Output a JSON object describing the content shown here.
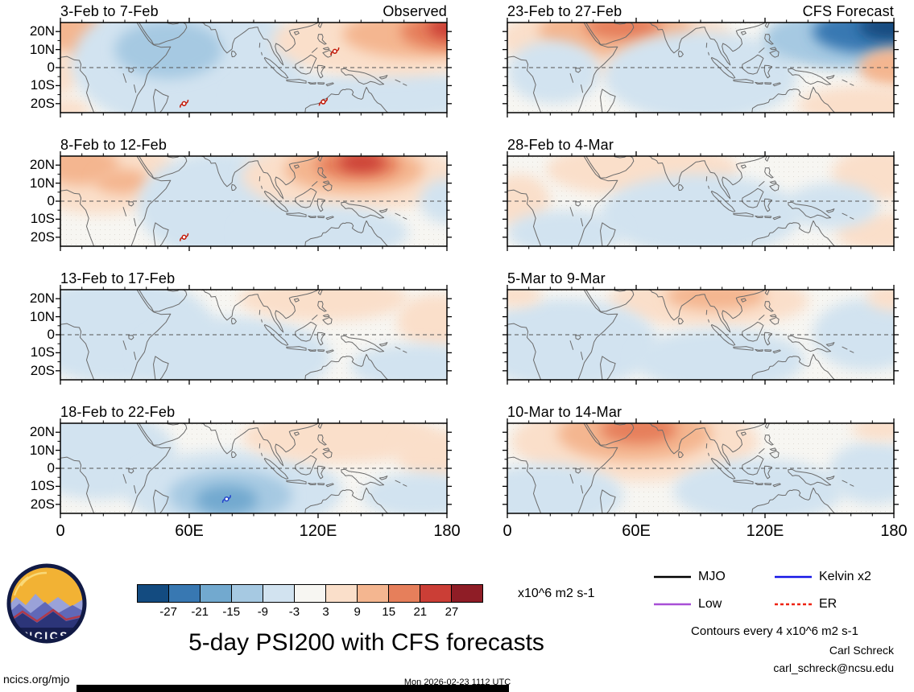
{
  "figure": {
    "main_title": "5-day PSI200 with CFS forecasts",
    "units_label": "x10^6 m2 s-1",
    "contour_note": "Contours every 4 x10^6 m2 s-1",
    "credit_name": "Carl Schreck",
    "credit_email": "carl_schreck@ncsu.edu",
    "footer_left": "ncics.org/mjo",
    "footer_center": "Mon 2026-02-23 1112 UTC",
    "logo_text": "NCICS"
  },
  "chart_data": {
    "type": "heatmap",
    "title": "5-day PSI200 with CFS forecasts",
    "description": "Eight map panels of 200-hPa streamfunction anomalies (PSI200), left column observed pentads, right column CFS forecast pentads, lon 0-180, lat 25S-25N",
    "x_ticks": [
      "0",
      "60E",
      "120E",
      "180"
    ],
    "y_ticks": [
      "20N",
      "10N",
      "0",
      "10S",
      "20S"
    ],
    "lon_range": [
      0,
      180
    ],
    "lat_range": [
      -25,
      25
    ],
    "map_bg": "#f7f6f2",
    "colorbar": {
      "levels": [
        -27,
        -21,
        -15,
        -9,
        -3,
        3,
        9,
        15,
        21,
        27
      ],
      "colors": [
        "#134b80",
        "#3878b2",
        "#72a9cf",
        "#a6c9e2",
        "#d2e3f0",
        "#f7f6f2",
        "#fadfca",
        "#f4b690",
        "#e67f5b",
        "#cb3e36",
        "#8f1d26"
      ],
      "units": "x10^6 m2 s-1"
    },
    "legend": [
      {
        "label": "MJO",
        "color": "#000000",
        "dash": ""
      },
      {
        "label": "Kelvin x2",
        "color": "#1515e6",
        "dash": ""
      },
      {
        "label": "Low",
        "color": "#a84fd6",
        "dash": ""
      },
      {
        "label": "ER",
        "color": "#ee2211",
        "dash": "4 3"
      }
    ],
    "panels": [
      {
        "title": "3-Feb to 7-Feb",
        "corner_label": "Observed",
        "anomalies": [
          {
            "x": 0.03,
            "y": 0.12,
            "rx": 0.09,
            "ry": 0.3,
            "v": 12
          },
          {
            "x": 0.0,
            "y": 0.55,
            "rx": 0.05,
            "ry": 0.25,
            "v": 6
          },
          {
            "x": 0.01,
            "y": 0.97,
            "rx": 0.07,
            "ry": 0.12,
            "v": 6
          },
          {
            "x": 0.33,
            "y": 0.45,
            "rx": 0.3,
            "ry": 0.75,
            "v": -6
          },
          {
            "x": 0.28,
            "y": 0.3,
            "rx": 0.14,
            "ry": 0.32,
            "v": -12
          },
          {
            "x": 0.62,
            "y": 0.85,
            "rx": 0.18,
            "ry": 0.28,
            "v": -6
          },
          {
            "x": 0.88,
            "y": 0.8,
            "rx": 0.2,
            "ry": 0.3,
            "v": -6
          },
          {
            "x": 0.85,
            "y": 0.2,
            "rx": 0.3,
            "ry": 0.4,
            "v": 6
          },
          {
            "x": 0.93,
            "y": 0.13,
            "rx": 0.2,
            "ry": 0.26,
            "v": 12
          },
          {
            "x": 1.0,
            "y": 0.1,
            "rx": 0.12,
            "ry": 0.2,
            "v": 18
          },
          {
            "x": 1.02,
            "y": 0.06,
            "rx": 0.07,
            "ry": 0.12,
            "v": 24
          }
        ],
        "storms": [
          {
            "x": 0.71,
            "y": 0.32,
            "color": "#c21807"
          },
          {
            "x": 0.32,
            "y": 0.9,
            "color": "#c21807"
          },
          {
            "x": 0.68,
            "y": 0.88,
            "color": "#c21807"
          }
        ]
      },
      {
        "title": "8-Feb to 12-Feb",
        "corner_label": "",
        "anomalies": [
          {
            "x": 0.1,
            "y": 0.2,
            "rx": 0.2,
            "ry": 0.45,
            "v": 6
          },
          {
            "x": 0.05,
            "y": 0.1,
            "rx": 0.1,
            "ry": 0.22,
            "v": 12
          },
          {
            "x": 0.16,
            "y": 0.28,
            "rx": 0.07,
            "ry": 0.14,
            "v": 12
          },
          {
            "x": 0.42,
            "y": 0.55,
            "rx": 0.22,
            "ry": 0.6,
            "v": -6
          },
          {
            "x": 0.75,
            "y": 0.22,
            "rx": 0.28,
            "ry": 0.4,
            "v": 6
          },
          {
            "x": 0.76,
            "y": 0.15,
            "rx": 0.18,
            "ry": 0.26,
            "v": 12
          },
          {
            "x": 0.77,
            "y": 0.1,
            "rx": 0.11,
            "ry": 0.16,
            "v": 18
          },
          {
            "x": 0.78,
            "y": 0.07,
            "rx": 0.06,
            "ry": 0.1,
            "v": 24
          },
          {
            "x": 0.68,
            "y": 0.85,
            "rx": 0.22,
            "ry": 0.3,
            "v": -6
          },
          {
            "x": 1.0,
            "y": 0.5,
            "rx": 0.07,
            "ry": 0.25,
            "v": -6
          }
        ],
        "storms": [
          {
            "x": 0.32,
            "y": 0.9,
            "color": "#c21807"
          }
        ]
      },
      {
        "title": "13-Feb to 17-Feb",
        "corner_label": "",
        "anomalies": [
          {
            "x": 0.15,
            "y": 0.45,
            "rx": 0.25,
            "ry": 0.6,
            "v": -6
          },
          {
            "x": 0.45,
            "y": 0.75,
            "rx": 0.25,
            "ry": 0.45,
            "v": -6
          },
          {
            "x": 0.68,
            "y": 0.1,
            "rx": 0.22,
            "ry": 0.25,
            "v": 6
          },
          {
            "x": 0.97,
            "y": 0.35,
            "rx": 0.1,
            "ry": 0.3,
            "v": 6
          },
          {
            "x": 0.92,
            "y": 0.85,
            "rx": 0.17,
            "ry": 0.25,
            "v": -6
          }
        ],
        "storms": []
      },
      {
        "title": "18-Feb to 22-Feb",
        "corner_label": "",
        "anomalies": [
          {
            "x": 0.1,
            "y": 0.35,
            "rx": 0.2,
            "ry": 0.5,
            "v": -6
          },
          {
            "x": 0.45,
            "y": 0.75,
            "rx": 0.28,
            "ry": 0.45,
            "v": -6
          },
          {
            "x": 0.44,
            "y": 0.8,
            "rx": 0.16,
            "ry": 0.28,
            "v": -12
          },
          {
            "x": 0.43,
            "y": 0.85,
            "rx": 0.08,
            "ry": 0.16,
            "v": -18
          },
          {
            "x": 0.72,
            "y": 0.15,
            "rx": 0.25,
            "ry": 0.3,
            "v": 6
          },
          {
            "x": 0.97,
            "y": 0.35,
            "rx": 0.1,
            "ry": 0.28,
            "v": 6
          },
          {
            "x": 0.93,
            "y": 0.8,
            "rx": 0.15,
            "ry": 0.25,
            "v": -6
          }
        ],
        "storms": [
          {
            "x": 0.43,
            "y": 0.84,
            "color": "#2244cc"
          }
        ]
      },
      {
        "title": "23-Feb to 27-Feb",
        "corner_label": "CFS Forecast",
        "anomalies": [
          {
            "x": 0.28,
            "y": 0.18,
            "rx": 0.3,
            "ry": 0.42,
            "v": 6
          },
          {
            "x": 0.28,
            "y": 0.1,
            "rx": 0.2,
            "ry": 0.28,
            "v": 12
          },
          {
            "x": 0.3,
            "y": 0.05,
            "rx": 0.1,
            "ry": 0.14,
            "v": 18
          },
          {
            "x": 0.12,
            "y": 0.55,
            "rx": 0.12,
            "ry": 0.35,
            "v": -6
          },
          {
            "x": 0.5,
            "y": 0.6,
            "rx": 0.25,
            "ry": 0.5,
            "v": -6
          },
          {
            "x": 0.88,
            "y": 0.18,
            "rx": 0.22,
            "ry": 0.34,
            "v": -12
          },
          {
            "x": 0.94,
            "y": 0.1,
            "rx": 0.15,
            "ry": 0.24,
            "v": -24
          },
          {
            "x": 1.0,
            "y": 0.05,
            "rx": 0.09,
            "ry": 0.15,
            "v": -30
          },
          {
            "x": 1.0,
            "y": 0.5,
            "rx": 0.09,
            "ry": 0.22,
            "v": 12
          },
          {
            "x": 0.93,
            "y": 0.92,
            "rx": 0.18,
            "ry": 0.22,
            "v": 6
          }
        ],
        "storms": []
      },
      {
        "title": "28-Feb to 4-Mar",
        "corner_label": "",
        "anomalies": [
          {
            "x": 0.35,
            "y": 0.15,
            "rx": 0.25,
            "ry": 0.3,
            "v": 6
          },
          {
            "x": 0.03,
            "y": 0.5,
            "rx": 0.08,
            "ry": 0.3,
            "v": 6
          },
          {
            "x": 0.5,
            "y": 0.65,
            "rx": 0.26,
            "ry": 0.45,
            "v": -6
          },
          {
            "x": 0.15,
            "y": 0.85,
            "rx": 0.15,
            "ry": 0.25,
            "v": -6
          },
          {
            "x": 0.96,
            "y": 0.2,
            "rx": 0.12,
            "ry": 0.3,
            "v": 6
          },
          {
            "x": 0.97,
            "y": 0.85,
            "rx": 0.12,
            "ry": 0.22,
            "v": 6
          },
          {
            "x": 0.84,
            "y": 0.55,
            "rx": 0.12,
            "ry": 0.25,
            "v": -6
          }
        ],
        "storms": []
      },
      {
        "title": "5-Mar to 9-Mar",
        "corner_label": "",
        "anomalies": [
          {
            "x": 0.52,
            "y": 0.12,
            "rx": 0.26,
            "ry": 0.3,
            "v": 6
          },
          {
            "x": 0.54,
            "y": 0.07,
            "rx": 0.13,
            "ry": 0.16,
            "v": 12
          },
          {
            "x": 0.15,
            "y": 0.6,
            "rx": 0.24,
            "ry": 0.5,
            "v": -6
          },
          {
            "x": 0.55,
            "y": 0.78,
            "rx": 0.22,
            "ry": 0.35,
            "v": -6
          },
          {
            "x": 0.93,
            "y": 0.5,
            "rx": 0.14,
            "ry": 0.4,
            "v": -6
          },
          {
            "x": 1.0,
            "y": 0.08,
            "rx": 0.07,
            "ry": 0.15,
            "v": 6
          },
          {
            "x": 0.02,
            "y": 0.06,
            "rx": 0.07,
            "ry": 0.13,
            "v": 6
          }
        ],
        "storms": []
      },
      {
        "title": "10-Mar to 14-Mar",
        "corner_label": "",
        "anomalies": [
          {
            "x": 0.33,
            "y": 0.2,
            "rx": 0.32,
            "ry": 0.45,
            "v": 6
          },
          {
            "x": 0.33,
            "y": 0.12,
            "rx": 0.2,
            "ry": 0.3,
            "v": 12
          },
          {
            "x": 0.34,
            "y": 0.07,
            "rx": 0.1,
            "ry": 0.16,
            "v": 18
          },
          {
            "x": 0.1,
            "y": 0.8,
            "rx": 0.2,
            "ry": 0.35,
            "v": -6
          },
          {
            "x": 0.65,
            "y": 0.75,
            "rx": 0.22,
            "ry": 0.35,
            "v": -6
          },
          {
            "x": 0.95,
            "y": 0.55,
            "rx": 0.12,
            "ry": 0.35,
            "v": -6
          },
          {
            "x": 0.97,
            "y": 0.06,
            "rx": 0.08,
            "ry": 0.13,
            "v": 6
          }
        ],
        "storms": []
      }
    ]
  }
}
